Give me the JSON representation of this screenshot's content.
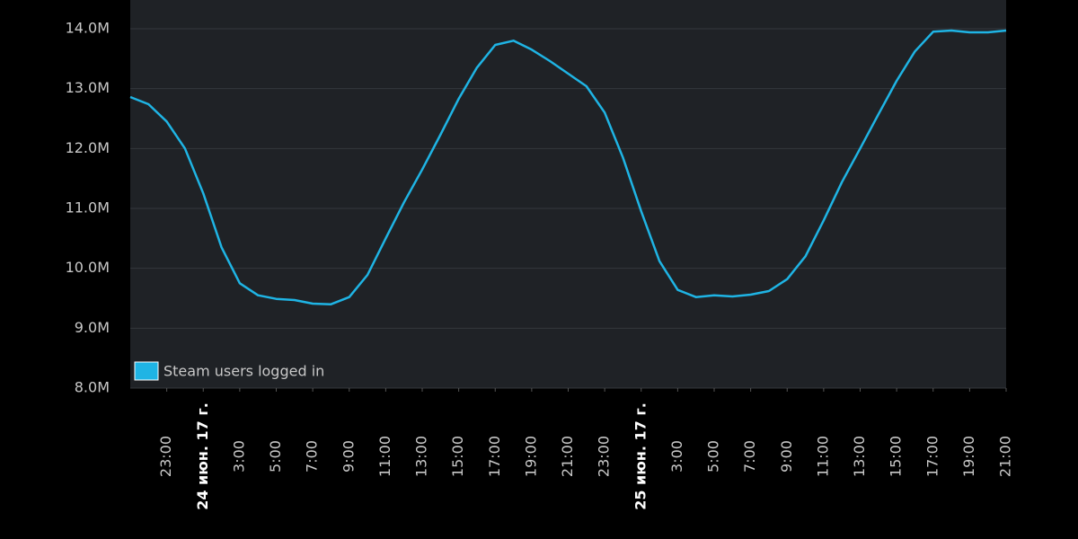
{
  "chart_data": {
    "type": "line",
    "x": [
      "2017-06-23T21:00",
      "2017-06-23T22:00",
      "2017-06-23T23:00",
      "2017-06-24T00:00",
      "2017-06-24T01:00",
      "2017-06-24T02:00",
      "2017-06-24T03:00",
      "2017-06-24T04:00",
      "2017-06-24T05:00",
      "2017-06-24T06:00",
      "2017-06-24T07:00",
      "2017-06-24T08:00",
      "2017-06-24T09:00",
      "2017-06-24T10:00",
      "2017-06-24T11:00",
      "2017-06-24T12:00",
      "2017-06-24T13:00",
      "2017-06-24T14:00",
      "2017-06-24T15:00",
      "2017-06-24T16:00",
      "2017-06-24T17:00",
      "2017-06-24T18:00",
      "2017-06-24T19:00",
      "2017-06-24T20:00",
      "2017-06-24T21:00",
      "2017-06-24T22:00",
      "2017-06-24T23:00",
      "2017-06-25T00:00",
      "2017-06-25T01:00",
      "2017-06-25T02:00",
      "2017-06-25T03:00",
      "2017-06-25T04:00",
      "2017-06-25T05:00",
      "2017-06-25T06:00",
      "2017-06-25T07:00",
      "2017-06-25T08:00",
      "2017-06-25T09:00",
      "2017-06-25T10:00",
      "2017-06-25T11:00",
      "2017-06-25T12:00",
      "2017-06-25T13:00",
      "2017-06-25T14:00",
      "2017-06-25T15:00",
      "2017-06-25T16:00",
      "2017-06-25T17:00",
      "2017-06-25T18:00",
      "2017-06-25T19:00",
      "2017-06-25T20:00",
      "2017-06-25T21:00"
    ],
    "series": [
      {
        "name": "Steam users logged in",
        "color": "#1fb4e4",
        "values": [
          12860000,
          12740000,
          12450000,
          12000000,
          11250000,
          10350000,
          9750000,
          9550000,
          9490000,
          9470000,
          9410000,
          9400000,
          9520000,
          9890000,
          10500000,
          11100000,
          11650000,
          12230000,
          12830000,
          13350000,
          13730000,
          13800000,
          13650000,
          13460000,
          13250000,
          13040000,
          12600000,
          11850000,
          10950000,
          10120000,
          9640000,
          9520000,
          9550000,
          9530000,
          9560000,
          9620000,
          9820000,
          10200000,
          10800000,
          11440000,
          12000000,
          12570000,
          13130000,
          13620000,
          13950000,
          13970000,
          13940000,
          13940000,
          13970000
        ]
      }
    ],
    "ylim": [
      8000000,
      14480000
    ],
    "yticks": [
      {
        "value": 8000000,
        "label": "8.0M"
      },
      {
        "value": 9000000,
        "label": "9.0M"
      },
      {
        "value": 10000000,
        "label": "10.0M"
      },
      {
        "value": 11000000,
        "label": "11.0M"
      },
      {
        "value": 12000000,
        "label": "12.0M"
      },
      {
        "value": 13000000,
        "label": "13.0M"
      },
      {
        "value": 14000000,
        "label": "14.0M"
      }
    ],
    "xlim": [
      "2017-06-23T21:00",
      "2017-06-25T21:00"
    ],
    "xticks": [
      {
        "value": "2017-06-23T23:00",
        "label": "23:00"
      },
      {
        "value": "2017-06-24T01:00",
        "label": "24 июн. 17 г."
      },
      {
        "value": "2017-06-24T03:00",
        "label": "3:00"
      },
      {
        "value": "2017-06-24T05:00",
        "label": "5:00"
      },
      {
        "value": "2017-06-24T07:00",
        "label": "7:00"
      },
      {
        "value": "2017-06-24T09:00",
        "label": "9:00"
      },
      {
        "value": "2017-06-24T11:00",
        "label": "11:00"
      },
      {
        "value": "2017-06-24T13:00",
        "label": "13:00"
      },
      {
        "value": "2017-06-24T15:00",
        "label": "15:00"
      },
      {
        "value": "2017-06-24T17:00",
        "label": "17:00"
      },
      {
        "value": "2017-06-24T19:00",
        "label": "19:00"
      },
      {
        "value": "2017-06-24T21:00",
        "label": "21:00"
      },
      {
        "value": "2017-06-24T23:00",
        "label": "23:00"
      },
      {
        "value": "2017-06-25T01:00",
        "label": "25 июн. 17 г."
      },
      {
        "value": "2017-06-25T03:00",
        "label": "3:00"
      },
      {
        "value": "2017-06-25T05:00",
        "label": "5:00"
      },
      {
        "value": "2017-06-25T07:00",
        "label": "7:00"
      },
      {
        "value": "2017-06-25T09:00",
        "label": "9:00"
      },
      {
        "value": "2017-06-25T11:00",
        "label": "11:00"
      },
      {
        "value": "2017-06-25T13:00",
        "label": "13:00"
      },
      {
        "value": "2017-06-25T15:00",
        "label": "15:00"
      },
      {
        "value": "2017-06-25T17:00",
        "label": "17:00"
      },
      {
        "value": "2017-06-25T19:00",
        "label": "19:00"
      },
      {
        "value": "2017-06-25T21:00",
        "label": "21:00"
      }
    ],
    "grid": true
  }
}
